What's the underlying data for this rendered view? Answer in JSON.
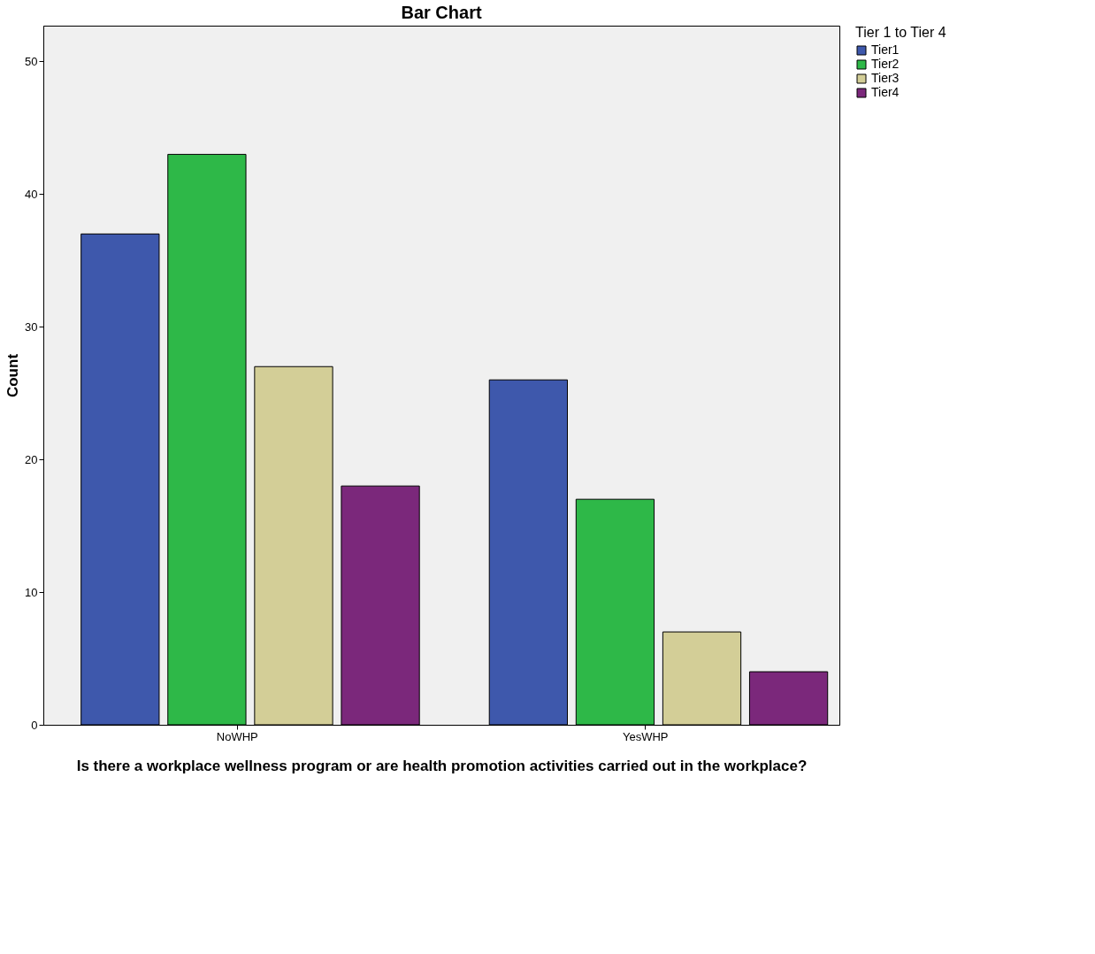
{
  "chart_data": {
    "type": "bar",
    "title": "Bar Chart",
    "xlabel": "Is there a workplace wellness program or are health promotion activities carried out in the workplace?",
    "ylabel": "Count",
    "legend_title": "Tier 1 to Tier 4",
    "categories": [
      "NoWHP",
      "YesWHP"
    ],
    "series": [
      {
        "name": "Tier1",
        "color": "#3e58ac",
        "values": [
          37,
          26
        ]
      },
      {
        "name": "Tier2",
        "color": "#2eb848",
        "values": [
          43,
          17
        ]
      },
      {
        "name": "Tier3",
        "color": "#d3ce97",
        "values": [
          27,
          7
        ]
      },
      {
        "name": "Tier4",
        "color": "#7b287b",
        "values": [
          18,
          4
        ]
      }
    ],
    "ylim": [
      0,
      52.7
    ],
    "yticks": [
      0,
      10,
      20,
      30,
      40,
      50
    ],
    "grid": false,
    "legend": "top right"
  }
}
